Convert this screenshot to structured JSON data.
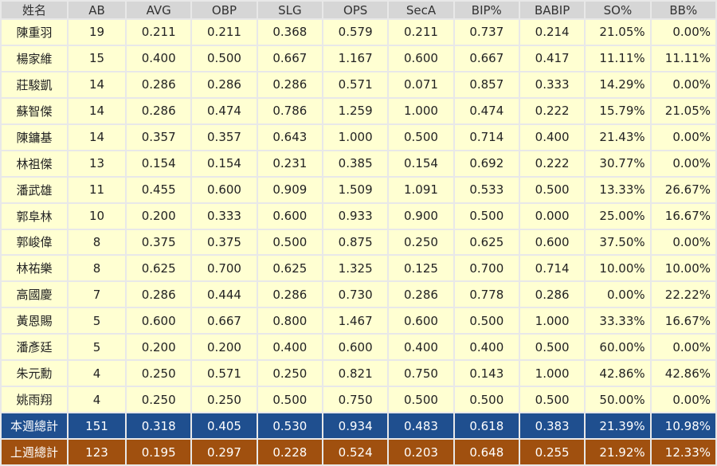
{
  "table": {
    "header": [
      "姓名",
      "AB",
      "AVG",
      "OBP",
      "SLG",
      "OPS",
      "SecA",
      "BIP%",
      "BABIP",
      "SO%",
      "BB%"
    ],
    "rows": [
      [
        "陳重羽",
        "19",
        "0.211",
        "0.211",
        "0.368",
        "0.579",
        "0.211",
        "0.737",
        "0.214",
        "21.05%",
        "0.00%"
      ],
      [
        "楊家維",
        "15",
        "0.400",
        "0.500",
        "0.667",
        "1.167",
        "0.600",
        "0.667",
        "0.417",
        "11.11%",
        "11.11%"
      ],
      [
        "莊駿凱",
        "14",
        "0.286",
        "0.286",
        "0.286",
        "0.571",
        "0.071",
        "0.857",
        "0.333",
        "14.29%",
        "0.00%"
      ],
      [
        "蘇智傑",
        "14",
        "0.286",
        "0.474",
        "0.786",
        "1.259",
        "1.000",
        "0.474",
        "0.222",
        "15.79%",
        "21.05%"
      ],
      [
        "陳鏞基",
        "14",
        "0.357",
        "0.357",
        "0.643",
        "1.000",
        "0.500",
        "0.714",
        "0.400",
        "21.43%",
        "0.00%"
      ],
      [
        "林祖傑",
        "13",
        "0.154",
        "0.154",
        "0.231",
        "0.385",
        "0.154",
        "0.692",
        "0.222",
        "30.77%",
        "0.00%"
      ],
      [
        "潘武雄",
        "11",
        "0.455",
        "0.600",
        "0.909",
        "1.509",
        "1.091",
        "0.533",
        "0.500",
        "13.33%",
        "26.67%"
      ],
      [
        "郭阜林",
        "10",
        "0.200",
        "0.333",
        "0.600",
        "0.933",
        "0.900",
        "0.500",
        "0.000",
        "25.00%",
        "16.67%"
      ],
      [
        "郭峻偉",
        "8",
        "0.375",
        "0.375",
        "0.500",
        "0.875",
        "0.250",
        "0.625",
        "0.600",
        "37.50%",
        "0.00%"
      ],
      [
        "林祐樂",
        "8",
        "0.625",
        "0.700",
        "0.625",
        "1.325",
        "0.125",
        "0.700",
        "0.714",
        "10.00%",
        "10.00%"
      ],
      [
        "高國慶",
        "7",
        "0.286",
        "0.444",
        "0.286",
        "0.730",
        "0.286",
        "0.778",
        "0.286",
        "0.00%",
        "22.22%"
      ],
      [
        "黃恩賜",
        "5",
        "0.600",
        "0.667",
        "0.800",
        "1.467",
        "0.600",
        "0.500",
        "1.000",
        "33.33%",
        "16.67%"
      ],
      [
        "潘彥廷",
        "5",
        "0.200",
        "0.200",
        "0.400",
        "0.600",
        "0.400",
        "0.400",
        "0.500",
        "60.00%",
        "0.00%"
      ],
      [
        "朱元勳",
        "4",
        "0.250",
        "0.571",
        "0.250",
        "0.821",
        "0.750",
        "0.143",
        "1.000",
        "42.86%",
        "42.86%"
      ],
      [
        "姚雨翔",
        "4",
        "0.250",
        "0.250",
        "0.500",
        "0.750",
        "0.500",
        "0.500",
        "0.500",
        "50.00%",
        "0.00%"
      ]
    ],
    "footer_rows": [
      [
        "本週總計",
        "151",
        "0.318",
        "0.405",
        "0.530",
        "0.934",
        "0.483",
        "0.618",
        "0.383",
        "21.39%",
        "10.98%"
      ],
      [
        "上週總計",
        "123",
        "0.195",
        "0.297",
        "0.228",
        "0.524",
        "0.203",
        "0.648",
        "0.255",
        "21.92%",
        "12.33%"
      ]
    ]
  }
}
